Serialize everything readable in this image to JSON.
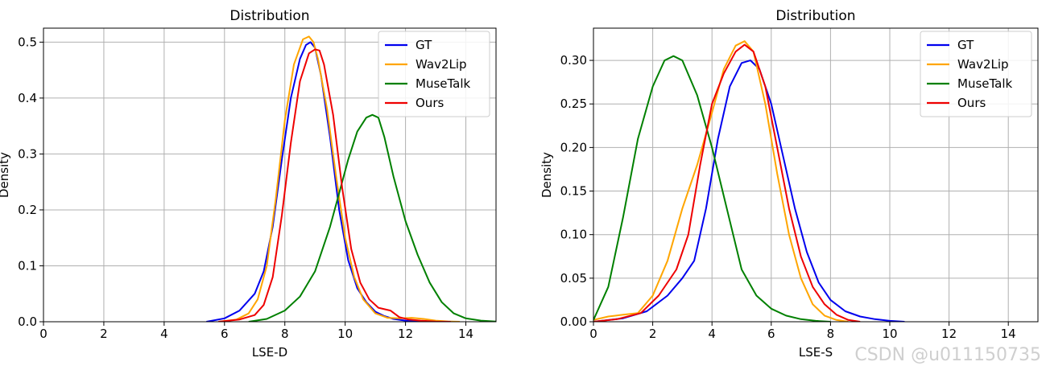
{
  "watermark": "CSDN @u011150735",
  "colors": {
    "GT": "#0000ee",
    "Wav2Lip": "#ffa500",
    "MuseTalk": "#008000",
    "Ours": "#ee0000",
    "grid": "#b0b0b0"
  },
  "chart_data": [
    {
      "type": "line",
      "title": "Distribution",
      "xlabel": "LSE-D",
      "ylabel": "Density",
      "xlim": [
        0,
        15
      ],
      "ylim": [
        0,
        0.525
      ],
      "xticks": [
        0,
        2,
        4,
        6,
        8,
        10,
        12,
        14
      ],
      "xtick_labels": [
        "0",
        "2",
        "4",
        "6",
        "8",
        "10",
        "12",
        "14"
      ],
      "yticks": [
        0.0,
        0.1,
        0.2,
        0.3,
        0.4,
        0.5
      ],
      "ytick_labels": [
        "0.0",
        "0.1",
        "0.2",
        "0.3",
        "0.4",
        "0.5"
      ],
      "grid": true,
      "legend_position": "top-right",
      "series": [
        {
          "name": "GT",
          "color": "#0000ee",
          "x": [
            5.4,
            6.0,
            6.5,
            7.0,
            7.3,
            7.6,
            7.9,
            8.2,
            8.5,
            8.7,
            8.85,
            9.0,
            9.2,
            9.5,
            9.8,
            10.1,
            10.4,
            10.7,
            11.0,
            11.3,
            11.6,
            12.0,
            12.5,
            13.0,
            13.6
          ],
          "y": [
            0.0,
            0.006,
            0.02,
            0.05,
            0.09,
            0.17,
            0.29,
            0.4,
            0.47,
            0.495,
            0.5,
            0.49,
            0.44,
            0.33,
            0.2,
            0.11,
            0.06,
            0.035,
            0.018,
            0.01,
            0.005,
            0.002,
            0.001,
            0.0003,
            0.0
          ]
        },
        {
          "name": "Wav2Lip",
          "color": "#ffa500",
          "x": [
            5.8,
            6.4,
            6.8,
            7.1,
            7.4,
            7.7,
            8.0,
            8.3,
            8.6,
            8.8,
            8.95,
            9.1,
            9.4,
            9.7,
            10.0,
            10.3,
            10.6,
            11.0,
            11.4,
            11.8,
            12.2,
            12.6,
            13.0,
            13.4,
            13.8
          ],
          "y": [
            0.0,
            0.004,
            0.015,
            0.04,
            0.1,
            0.22,
            0.36,
            0.46,
            0.505,
            0.51,
            0.5,
            0.47,
            0.38,
            0.26,
            0.15,
            0.08,
            0.04,
            0.015,
            0.007,
            0.006,
            0.007,
            0.005,
            0.002,
            0.0006,
            0.0
          ]
        },
        {
          "name": "MuseTalk",
          "color": "#008000",
          "x": [
            6.8,
            7.4,
            8.0,
            8.5,
            9.0,
            9.5,
            9.8,
            10.1,
            10.4,
            10.7,
            10.9,
            11.1,
            11.3,
            11.6,
            12.0,
            12.4,
            12.8,
            13.2,
            13.6,
            14.0,
            14.5,
            15.0
          ],
          "y": [
            0.0,
            0.005,
            0.02,
            0.045,
            0.09,
            0.17,
            0.23,
            0.29,
            0.34,
            0.365,
            0.37,
            0.365,
            0.33,
            0.26,
            0.18,
            0.12,
            0.07,
            0.035,
            0.015,
            0.006,
            0.002,
            0.0005
          ]
        },
        {
          "name": "Ours",
          "color": "#ee0000",
          "x": [
            5.8,
            6.5,
            7.0,
            7.3,
            7.6,
            7.9,
            8.2,
            8.5,
            8.8,
            9.0,
            9.15,
            9.3,
            9.6,
            9.9,
            10.2,
            10.5,
            10.8,
            11.1,
            11.5,
            11.8,
            12.1,
            12.5,
            13.0,
            13.5
          ],
          "y": [
            0.0,
            0.004,
            0.012,
            0.03,
            0.08,
            0.19,
            0.32,
            0.43,
            0.48,
            0.487,
            0.485,
            0.46,
            0.37,
            0.24,
            0.13,
            0.07,
            0.04,
            0.025,
            0.02,
            0.008,
            0.004,
            0.002,
            0.0005,
            0.0
          ]
        }
      ]
    },
    {
      "type": "line",
      "title": "Distribution",
      "xlabel": "LSE-S",
      "ylabel": "Density",
      "xlim": [
        0,
        15
      ],
      "ylim": [
        0,
        0.337
      ],
      "xticks": [
        0,
        2,
        4,
        6,
        8,
        10,
        12,
        14
      ],
      "xtick_labels": [
        "0",
        "2",
        "4",
        "6",
        "8",
        "10",
        "12",
        "14"
      ],
      "yticks": [
        0.0,
        0.05,
        0.1,
        0.15,
        0.2,
        0.25,
        0.3
      ],
      "ytick_labels": [
        "0.00",
        "0.05",
        "0.10",
        "0.15",
        "0.20",
        "0.25",
        "0.30"
      ],
      "grid": true,
      "legend_position": "top-right",
      "series": [
        {
          "name": "GT",
          "color": "#0000ee",
          "x": [
            0.0,
            1.0,
            1.8,
            2.5,
            3.0,
            3.4,
            3.8,
            4.2,
            4.6,
            5.0,
            5.3,
            5.6,
            6.0,
            6.4,
            6.8,
            7.2,
            7.6,
            8.0,
            8.5,
            9.0,
            9.5,
            10.0,
            10.5
          ],
          "y": [
            0.0,
            0.004,
            0.012,
            0.03,
            0.05,
            0.07,
            0.13,
            0.21,
            0.27,
            0.297,
            0.3,
            0.29,
            0.25,
            0.19,
            0.13,
            0.08,
            0.045,
            0.025,
            0.012,
            0.006,
            0.003,
            0.001,
            0.0
          ]
        },
        {
          "name": "Wav2Lip",
          "color": "#ffa500",
          "x": [
            0.0,
            0.5,
            1.0,
            1.5,
            2.0,
            2.5,
            3.0,
            3.5,
            4.0,
            4.4,
            4.8,
            5.1,
            5.4,
            5.8,
            6.2,
            6.6,
            7.0,
            7.4,
            7.8,
            8.2,
            8.6
          ],
          "y": [
            0.002,
            0.006,
            0.008,
            0.01,
            0.03,
            0.07,
            0.13,
            0.18,
            0.24,
            0.29,
            0.317,
            0.322,
            0.31,
            0.25,
            0.17,
            0.1,
            0.05,
            0.02,
            0.007,
            0.002,
            0.0
          ]
        },
        {
          "name": "MuseTalk",
          "color": "#008000",
          "x": [
            0.0,
            0.5,
            1.0,
            1.5,
            2.0,
            2.4,
            2.7,
            3.0,
            3.5,
            4.0,
            4.5,
            5.0,
            5.5,
            6.0,
            6.5,
            7.0,
            7.5,
            8.0
          ],
          "y": [
            0.002,
            0.04,
            0.12,
            0.21,
            0.27,
            0.3,
            0.305,
            0.3,
            0.26,
            0.2,
            0.13,
            0.06,
            0.03,
            0.015,
            0.007,
            0.003,
            0.001,
            0.0
          ]
        },
        {
          "name": "Ours",
          "color": "#ee0000",
          "x": [
            0.0,
            0.8,
            1.6,
            2.2,
            2.8,
            3.2,
            3.6,
            4.0,
            4.4,
            4.8,
            5.1,
            5.4,
            5.8,
            6.2,
            6.6,
            7.0,
            7.4,
            7.8,
            8.2,
            8.6,
            9.0
          ],
          "y": [
            0.0,
            0.003,
            0.01,
            0.03,
            0.06,
            0.1,
            0.18,
            0.25,
            0.285,
            0.31,
            0.318,
            0.31,
            0.27,
            0.2,
            0.13,
            0.075,
            0.04,
            0.02,
            0.008,
            0.002,
            0.0
          ]
        }
      ]
    }
  ]
}
